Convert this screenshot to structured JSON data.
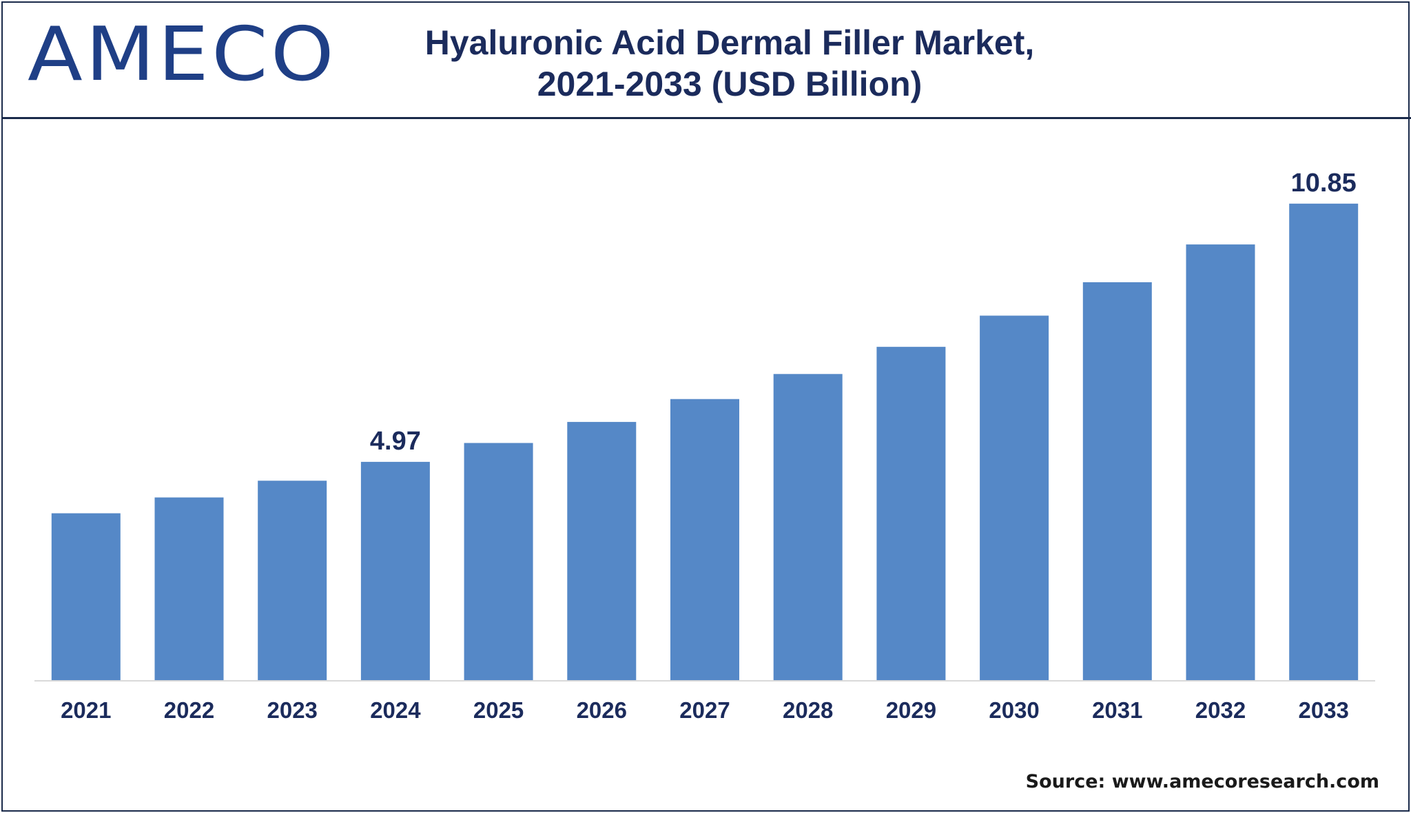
{
  "logo": {
    "text": "AMECO"
  },
  "title": {
    "line1": "Hyaluronic Acid Dermal Filler Market,",
    "line2": "2021-2033 (USD Billion)"
  },
  "source": "Source: www.amecoresearch.com",
  "colors": {
    "bar": "#5588c7",
    "title": "#1b2b5c",
    "label": "#1b2b5c",
    "axis": "#d9d9d9",
    "logo": "#1f3f86"
  },
  "chart_data": {
    "type": "bar",
    "title": "Hyaluronic Acid Dermal Filler Market, 2021-2033 (USD Billion)",
    "xlabel": "",
    "ylabel": "",
    "ylim": [
      0,
      12
    ],
    "grid": false,
    "legend": "none",
    "categories": [
      "2021",
      "2022",
      "2023",
      "2024",
      "2025",
      "2026",
      "2027",
      "2028",
      "2029",
      "2030",
      "2031",
      "2032",
      "2033"
    ],
    "values": [
      3.8,
      4.16,
      4.54,
      4.97,
      5.4,
      5.88,
      6.4,
      6.97,
      7.59,
      8.3,
      9.06,
      9.92,
      10.85
    ],
    "data_labels": [
      {
        "category": "2024",
        "text": "4.97"
      },
      {
        "category": "2033",
        "text": "10.85"
      }
    ]
  }
}
